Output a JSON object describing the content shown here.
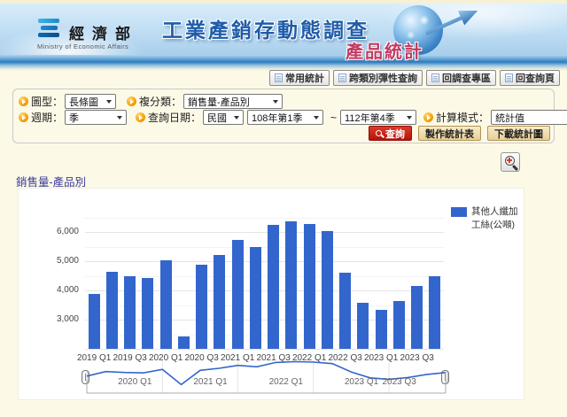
{
  "header": {
    "agency": "經濟部",
    "agency_en": "Ministry of Economic Affairs",
    "survey_title": "工業產銷存動態調查",
    "page_title": "產品統計"
  },
  "nav": {
    "items": [
      {
        "label": "常用統計"
      },
      {
        "label": "跨類別彈性查詢"
      },
      {
        "label": "回調查專區"
      },
      {
        "label": "回查詢頁"
      }
    ]
  },
  "filters": {
    "chart_type": {
      "label": "圖型：",
      "value": "長條圖"
    },
    "subcategory": {
      "label": "複分類：",
      "value": "銷售量-產品別"
    },
    "period": {
      "label": "週期：",
      "value": "季"
    },
    "query_date": {
      "label": "查詢日期：",
      "calendar": "民國",
      "from": "108年第1季",
      "to": "112年第4季",
      "separator": "~"
    },
    "calc_mode": {
      "label": "計算模式：",
      "value": "統計值"
    },
    "buttons": {
      "search": "查詢",
      "make_table": "製作統計表",
      "download_chart": "下載統計圖"
    }
  },
  "chart": {
    "section_title": "銷售量-產品別"
  },
  "chart_data": {
    "type": "bar",
    "title": "銷售量-產品別",
    "legend": [
      "其他人纖加工絲(公噸)"
    ],
    "legend_position": "right",
    "categories": [
      "2019 Q1",
      "2019 Q2",
      "2019 Q3",
      "2019 Q4",
      "2020 Q1",
      "2020 Q2",
      "2020 Q3",
      "2020 Q4",
      "2021 Q1",
      "2021 Q2",
      "2021 Q3",
      "2021 Q4",
      "2022 Q1",
      "2022 Q2",
      "2022 Q3",
      "2022 Q4",
      "2023 Q1",
      "2023 Q2",
      "2023 Q3",
      "2023 Q4"
    ],
    "values": [
      3870,
      4650,
      4500,
      4430,
      5030,
      2420,
      4870,
      5220,
      5720,
      5470,
      6230,
      6360,
      6280,
      6030,
      4600,
      3580,
      3330,
      3640,
      4160,
      4490
    ],
    "x_tick_labels": [
      "2019 Q1",
      "2019 Q3",
      "2020 Q1",
      "2020 Q3",
      "2021 Q1",
      "2021 Q3",
      "2022 Q1",
      "2022 Q3",
      "2023 Q1",
      "2023 Q3"
    ],
    "y_ticks": [
      3000,
      4000,
      5000,
      6000
    ],
    "ylim": [
      2000,
      6700
    ],
    "grid": true,
    "colors": {
      "bar": "#3366CC",
      "line": "#3366CC"
    },
    "range_filter": {
      "labels": [
        "2020 Q1",
        "2021 Q1",
        "2022 Q1",
        "2023 Q1",
        "2023 Q3"
      ]
    }
  }
}
